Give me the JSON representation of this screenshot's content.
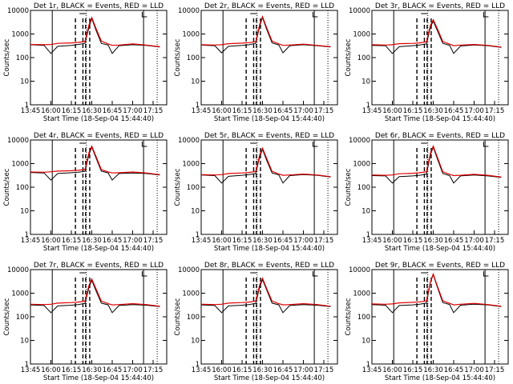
{
  "common": {
    "x_tick_labels": [
      "13:45",
      "16:00",
      "16:15",
      "16:30",
      "16:45",
      "17:00",
      "17:15"
    ],
    "y_tick_labels": [
      "1",
      "10",
      "100",
      "1000",
      "10000"
    ],
    "y_axis_label": "Counts/sec",
    "x_axis_label": "Start Time (18-Sep-04 15:44:40)",
    "line_colors": {
      "events": "#000000",
      "lld": "#e00000"
    }
  },
  "chart_data": [
    {
      "type": "line",
      "title": "Det 1r, BLACK = Events, RED = LLD",
      "xlabel": "Start Time (18-Sep-04 15:44:40)",
      "ylabel": "Counts/sec",
      "y_scale": "log",
      "ylim": [
        1,
        10000
      ],
      "x_ticks": [
        "13:45",
        "16:00",
        "16:15",
        "16:30",
        "16:45",
        "17:00",
        "17:15"
      ],
      "series": [
        {
          "name": "Events",
          "color": "#000000",
          "x": [
            "15:45",
            "15:55",
            "16:00",
            "16:05",
            "16:15",
            "16:20",
            "16:25",
            "16:28",
            "16:30",
            "16:33",
            "16:37",
            "16:42",
            "16:45",
            "16:50",
            "17:00",
            "17:10",
            "17:20"
          ],
          "y": [
            350,
            330,
            150,
            300,
            330,
            360,
            400,
            2000,
            4500,
            1500,
            400,
            340,
            150,
            320,
            350,
            330,
            280
          ]
        },
        {
          "name": "LLD",
          "color": "#e00000",
          "x": [
            "15:45",
            "15:55",
            "16:00",
            "16:05",
            "16:15",
            "16:20",
            "16:25",
            "16:28",
            "16:30",
            "16:33",
            "16:37",
            "16:42",
            "16:45",
            "16:50",
            "17:00",
            "17:10",
            "17:20"
          ],
          "y": [
            360,
            350,
            360,
            400,
            420,
            440,
            480,
            2500,
            5000,
            1800,
            500,
            380,
            330,
            340,
            380,
            340,
            290
          ]
        }
      ]
    },
    {
      "type": "line",
      "title": "Det 2r, BLACK = Events, RED = LLD",
      "xlabel": "Start Time (18-Sep-04 15:44:40)",
      "ylabel": "Counts/sec",
      "y_scale": "log",
      "ylim": [
        1,
        10000
      ],
      "x_ticks": [
        "13:45",
        "16:00",
        "16:15",
        "16:30",
        "16:45",
        "17:00",
        "17:15"
      ],
      "series": [
        {
          "name": "Events",
          "color": "#000000",
          "x": [
            "15:45",
            "15:55",
            "16:00",
            "16:05",
            "16:15",
            "16:20",
            "16:25",
            "16:28",
            "16:30",
            "16:33",
            "16:37",
            "16:42",
            "16:45",
            "16:50",
            "17:00",
            "17:10",
            "17:20"
          ],
          "y": [
            340,
            320,
            160,
            300,
            330,
            350,
            400,
            2200,
            5000,
            1600,
            420,
            340,
            160,
            320,
            350,
            320,
            280
          ]
        },
        {
          "name": "LLD",
          "color": "#e00000",
          "x": [
            "15:45",
            "15:55",
            "16:00",
            "16:05",
            "16:15",
            "16:20",
            "16:25",
            "16:28",
            "16:30",
            "16:33",
            "16:37",
            "16:42",
            "16:45",
            "16:50",
            "17:00",
            "17:10",
            "17:20"
          ],
          "y": [
            350,
            340,
            350,
            390,
            410,
            430,
            470,
            2600,
            5500,
            1900,
            500,
            380,
            330,
            340,
            370,
            330,
            290
          ]
        }
      ]
    },
    {
      "type": "line",
      "title": "Det 3r, BLACK = Events, RED = LLD",
      "xlabel": "Start Time (18-Sep-04 15:44:40)",
      "ylabel": "Counts/sec",
      "y_scale": "log",
      "ylim": [
        1,
        10000
      ],
      "x_ticks": [
        "13:45",
        "16:00",
        "16:15",
        "16:30",
        "16:45",
        "17:00",
        "17:15"
      ],
      "series": [
        {
          "name": "Events",
          "color": "#000000",
          "x": [
            "15:45",
            "15:55",
            "16:00",
            "16:05",
            "16:15",
            "16:20",
            "16:25",
            "16:28",
            "16:30",
            "16:33",
            "16:37",
            "16:42",
            "16:45",
            "16:50",
            "17:00",
            "17:10",
            "17:20"
          ],
          "y": [
            330,
            320,
            150,
            290,
            320,
            340,
            380,
            2000,
            3500,
            1400,
            400,
            330,
            150,
            310,
            340,
            320,
            270
          ]
        },
        {
          "name": "LLD",
          "color": "#e00000",
          "x": [
            "15:45",
            "15:55",
            "16:00",
            "16:05",
            "16:15",
            "16:20",
            "16:25",
            "16:28",
            "16:30",
            "16:33",
            "16:37",
            "16:42",
            "16:45",
            "16:50",
            "17:00",
            "17:10",
            "17:20"
          ],
          "y": [
            350,
            340,
            350,
            390,
            400,
            420,
            460,
            2400,
            4000,
            1700,
            480,
            370,
            320,
            340,
            360,
            330,
            280
          ]
        }
      ]
    },
    {
      "type": "line",
      "title": "Det 4r, BLACK = Events, RED = LLD",
      "xlabel": "Start Time (18-Sep-04 15:44:40)",
      "ylabel": "Counts/sec",
      "y_scale": "log",
      "ylim": [
        1,
        10000
      ],
      "x_ticks": [
        "13:45",
        "16:00",
        "16:15",
        "16:30",
        "16:45",
        "17:00",
        "17:15"
      ],
      "series": [
        {
          "name": "Events",
          "color": "#000000",
          "x": [
            "15:45",
            "15:55",
            "16:00",
            "16:05",
            "16:15",
            "16:20",
            "16:25",
            "16:28",
            "16:30",
            "16:33",
            "16:37",
            "16:42",
            "16:45",
            "16:50",
            "17:00",
            "17:10",
            "17:20"
          ],
          "y": [
            420,
            400,
            200,
            380,
            410,
            430,
            470,
            2500,
            5000,
            1800,
            480,
            400,
            200,
            380,
            400,
            380,
            330
          ]
        },
        {
          "name": "LLD",
          "color": "#e00000",
          "x": [
            "15:45",
            "15:55",
            "16:00",
            "16:05",
            "16:15",
            "16:20",
            "16:25",
            "16:28",
            "16:30",
            "16:33",
            "16:37",
            "16:42",
            "16:45",
            "16:50",
            "17:00",
            "17:10",
            "17:20"
          ],
          "y": [
            440,
            430,
            450,
            480,
            500,
            520,
            560,
            3000,
            5500,
            2100,
            560,
            440,
            400,
            410,
            440,
            400,
            340
          ]
        }
      ]
    },
    {
      "type": "line",
      "title": "Det 5r, BLACK = Events, RED = LLD",
      "xlabel": "Start Time (18-Sep-04 15:44:40)",
      "ylabel": "Counts/sec",
      "y_scale": "log",
      "ylim": [
        1,
        10000
      ],
      "x_ticks": [
        "13:45",
        "16:00",
        "16:15",
        "16:30",
        "16:45",
        "17:00",
        "17:15"
      ],
      "series": [
        {
          "name": "Events",
          "color": "#000000",
          "x": [
            "15:45",
            "15:55",
            "16:00",
            "16:05",
            "16:15",
            "16:20",
            "16:25",
            "16:28",
            "16:30",
            "16:33",
            "16:37",
            "16:42",
            "16:45",
            "16:50",
            "17:00",
            "17:10",
            "17:20"
          ],
          "y": [
            330,
            310,
            150,
            290,
            320,
            340,
            380,
            2000,
            4000,
            1400,
            400,
            330,
            150,
            310,
            340,
            320,
            270
          ]
        },
        {
          "name": "LLD",
          "color": "#e00000",
          "x": [
            "15:45",
            "15:55",
            "16:00",
            "16:05",
            "16:15",
            "16:20",
            "16:25",
            "16:28",
            "16:30",
            "16:33",
            "16:37",
            "16:42",
            "16:45",
            "16:50",
            "17:00",
            "17:10",
            "17:20"
          ],
          "y": [
            340,
            330,
            340,
            380,
            400,
            420,
            460,
            2400,
            4500,
            1700,
            470,
            360,
            320,
            330,
            360,
            330,
            280
          ]
        }
      ]
    },
    {
      "type": "line",
      "title": "Det 6r, BLACK = Events, RED = LLD",
      "xlabel": "Start Time (18-Sep-04 15:44:40)",
      "ylabel": "Counts/sec",
      "y_scale": "log",
      "ylim": [
        1,
        10000
      ],
      "x_ticks": [
        "13:45",
        "16:00",
        "16:15",
        "16:30",
        "16:45",
        "17:00",
        "17:15"
      ],
      "series": [
        {
          "name": "Events",
          "color": "#000000",
          "x": [
            "15:45",
            "15:55",
            "16:00",
            "16:05",
            "16:15",
            "16:20",
            "16:25",
            "16:28",
            "16:30",
            "16:33",
            "16:37",
            "16:42",
            "16:45",
            "16:50",
            "17:00",
            "17:10",
            "17:20"
          ],
          "y": [
            310,
            300,
            150,
            280,
            300,
            320,
            360,
            2400,
            5000,
            1600,
            380,
            310,
            150,
            300,
            330,
            300,
            260
          ]
        },
        {
          "name": "LLD",
          "color": "#e00000",
          "x": [
            "15:45",
            "15:55",
            "16:00",
            "16:05",
            "16:15",
            "16:20",
            "16:25",
            "16:28",
            "16:30",
            "16:33",
            "16:37",
            "16:42",
            "16:45",
            "16:50",
            "17:00",
            "17:10",
            "17:20"
          ],
          "y": [
            330,
            320,
            330,
            370,
            390,
            410,
            450,
            2800,
            5500,
            1900,
            450,
            350,
            310,
            320,
            350,
            320,
            270
          ]
        }
      ]
    },
    {
      "type": "line",
      "title": "Det 7r, BLACK = Events, RED = LLD",
      "xlabel": "Start Time (18-Sep-04 15:44:40)",
      "ylabel": "Counts/sec",
      "y_scale": "log",
      "ylim": [
        1,
        10000
      ],
      "x_ticks": [
        "13:45",
        "16:00",
        "16:15",
        "16:30",
        "16:45",
        "17:00",
        "17:15"
      ],
      "series": [
        {
          "name": "Events",
          "color": "#000000",
          "x": [
            "15:45",
            "15:55",
            "16:00",
            "16:05",
            "16:15",
            "16:20",
            "16:25",
            "16:28",
            "16:30",
            "16:33",
            "16:37",
            "16:42",
            "16:45",
            "16:50",
            "17:00",
            "17:10",
            "17:20"
          ],
          "y": [
            320,
            300,
            150,
            290,
            310,
            330,
            370,
            1800,
            3500,
            1300,
            380,
            320,
            150,
            300,
            330,
            310,
            270
          ]
        },
        {
          "name": "LLD",
          "color": "#e00000",
          "x": [
            "15:45",
            "15:55",
            "16:00",
            "16:05",
            "16:15",
            "16:20",
            "16:25",
            "16:28",
            "16:30",
            "16:33",
            "16:37",
            "16:42",
            "16:45",
            "16:50",
            "17:00",
            "17:10",
            "17:20"
          ],
          "y": [
            340,
            330,
            340,
            380,
            400,
            420,
            460,
            2200,
            4000,
            1600,
            460,
            360,
            320,
            330,
            360,
            330,
            280
          ]
        }
      ]
    },
    {
      "type": "line",
      "title": "Det 8r, BLACK = Events, RED = LLD",
      "xlabel": "Start Time (18-Sep-04 15:44:40)",
      "ylabel": "Counts/sec",
      "y_scale": "log",
      "ylim": [
        1,
        10000
      ],
      "x_ticks": [
        "13:45",
        "16:00",
        "16:15",
        "16:30",
        "16:45",
        "17:00",
        "17:15"
      ],
      "series": [
        {
          "name": "Events",
          "color": "#000000",
          "x": [
            "15:45",
            "15:55",
            "16:00",
            "16:05",
            "16:15",
            "16:20",
            "16:25",
            "16:28",
            "16:30",
            "16:33",
            "16:37",
            "16:42",
            "16:45",
            "16:50",
            "17:00",
            "17:10",
            "17:20"
          ],
          "y": [
            320,
            300,
            150,
            290,
            310,
            330,
            370,
            1900,
            3800,
            1400,
            380,
            320,
            150,
            300,
            330,
            310,
            270
          ]
        },
        {
          "name": "LLD",
          "color": "#e00000",
          "x": [
            "15:45",
            "15:55",
            "16:00",
            "16:05",
            "16:15",
            "16:20",
            "16:25",
            "16:28",
            "16:30",
            "16:33",
            "16:37",
            "16:42",
            "16:45",
            "16:50",
            "17:00",
            "17:10",
            "17:20"
          ],
          "y": [
            340,
            330,
            340,
            380,
            400,
            420,
            460,
            2300,
            4300,
            1600,
            460,
            360,
            320,
            330,
            360,
            330,
            280
          ]
        }
      ]
    },
    {
      "type": "line",
      "title": "Det 9r, BLACK = Events, RED = LLD",
      "xlabel": "Start Time (18-Sep-04 15:44:40)",
      "ylabel": "Counts/sec",
      "y_scale": "log",
      "ylim": [
        1,
        10000
      ],
      "x_ticks": [
        "13:45",
        "16:00",
        "16:15",
        "16:30",
        "16:45",
        "17:00",
        "17:15"
      ],
      "series": [
        {
          "name": "Events",
          "color": "#000000",
          "x": [
            "15:45",
            "15:55",
            "16:00",
            "16:05",
            "16:15",
            "16:20",
            "16:25",
            "16:28",
            "16:30",
            "16:33",
            "16:37",
            "16:42",
            "16:45",
            "16:50",
            "17:00",
            "17:10",
            "17:20"
          ],
          "y": [
            330,
            310,
            150,
            300,
            320,
            340,
            380,
            3000,
            6000,
            1800,
            400,
            330,
            150,
            310,
            340,
            320,
            270
          ]
        },
        {
          "name": "LLD",
          "color": "#e00000",
          "x": [
            "15:45",
            "15:55",
            "16:00",
            "16:05",
            "16:15",
            "16:20",
            "16:25",
            "16:28",
            "16:30",
            "16:33",
            "16:37",
            "16:42",
            "16:45",
            "16:50",
            "17:00",
            "17:10",
            "17:20"
          ],
          "y": [
            350,
            340,
            350,
            390,
            410,
            430,
            470,
            3200,
            6500,
            2000,
            480,
            370,
            320,
            340,
            370,
            330,
            280
          ]
        }
      ]
    }
  ]
}
